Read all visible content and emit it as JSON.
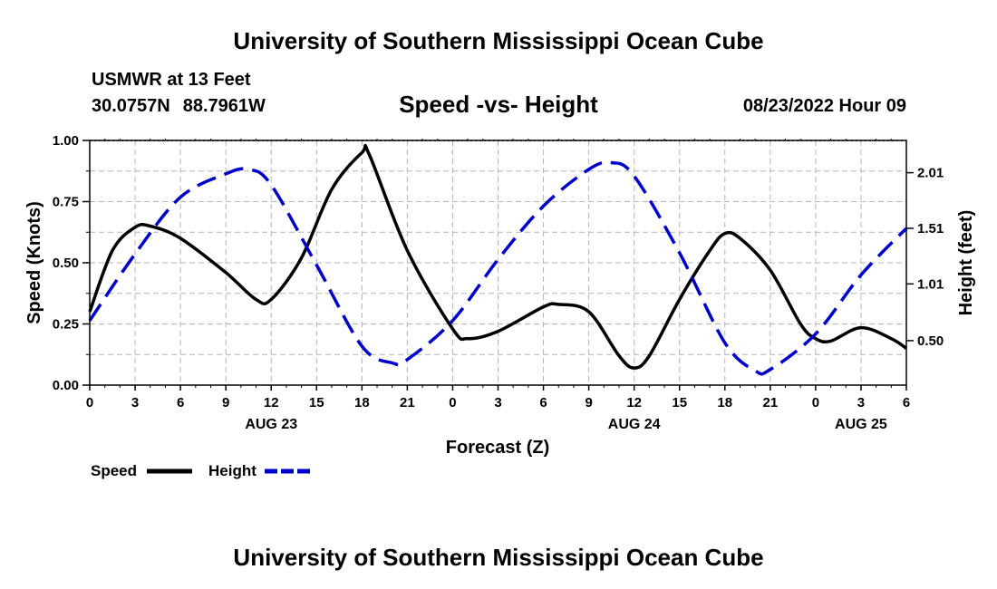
{
  "header": {
    "title": "University of Southern Mississippi Ocean Cube",
    "station": "USMWR at 13 Feet",
    "lat": "30.0757N",
    "lon": "88.7961W",
    "chart_title": "Speed -vs- Height",
    "datetime": "08/23/2022 Hour 09"
  },
  "footer": {
    "title": "University of Southern Mississippi Ocean Cube"
  },
  "chart_data": {
    "type": "line",
    "title": "Speed -vs- Height",
    "xlabel": "Forecast (Z)",
    "ylabel": "Speed (Knots)",
    "y2label": "Height (feet)",
    "grid": true,
    "x_range_hours": [
      0,
      54
    ],
    "x_ticks": [
      {
        "h": 0,
        "label": "0"
      },
      {
        "h": 3,
        "label": "3"
      },
      {
        "h": 6,
        "label": "6"
      },
      {
        "h": 9,
        "label": "9"
      },
      {
        "h": 12,
        "label": "12"
      },
      {
        "h": 15,
        "label": "15"
      },
      {
        "h": 18,
        "label": "18"
      },
      {
        "h": 21,
        "label": "21"
      },
      {
        "h": 24,
        "label": "0"
      },
      {
        "h": 27,
        "label": "3"
      },
      {
        "h": 30,
        "label": "6"
      },
      {
        "h": 33,
        "label": "9"
      },
      {
        "h": 36,
        "label": "12"
      },
      {
        "h": 39,
        "label": "15"
      },
      {
        "h": 42,
        "label": "18"
      },
      {
        "h": 45,
        "label": "21"
      },
      {
        "h": 48,
        "label": "0"
      },
      {
        "h": 51,
        "label": "3"
      },
      {
        "h": 54,
        "label": "6"
      }
    ],
    "date_labels": [
      {
        "h": 12,
        "label": "AUG 23"
      },
      {
        "h": 36,
        "label": "AUG 24"
      },
      {
        "h": 51,
        "label": "AUG 25"
      }
    ],
    "ylim": [
      0,
      1
    ],
    "y_ticks": [
      {
        "v": 0,
        "label": "0.00"
      },
      {
        "v": 0.25,
        "label": "0.25"
      },
      {
        "v": 0.5,
        "label": "0.50"
      },
      {
        "v": 0.75,
        "label": "0.75"
      },
      {
        "v": 1,
        "label": "1.00"
      }
    ],
    "y2lim": [
      0.1,
      2.3
    ],
    "y2_ticks": [
      {
        "v": 0.5,
        "label": "0.50"
      },
      {
        "v": 1.01,
        "label": "1.01"
      },
      {
        "v": 1.51,
        "label": "1.51"
      },
      {
        "v": 2.01,
        "label": "2.01"
      }
    ],
    "legend": [
      {
        "name": "Speed",
        "color": "#000000",
        "dash": false
      },
      {
        "name": "Height",
        "color": "#0000cc",
        "dash": true
      }
    ],
    "series": [
      {
        "name": "Speed",
        "axis": "left",
        "color": "#000000",
        "points": [
          [
            0,
            0.3
          ],
          [
            1.5,
            0.55
          ],
          [
            3,
            0.645
          ],
          [
            4,
            0.65
          ],
          [
            6,
            0.6
          ],
          [
            9,
            0.46
          ],
          [
            11,
            0.35
          ],
          [
            12,
            0.35
          ],
          [
            14,
            0.52
          ],
          [
            16,
            0.8
          ],
          [
            18,
            0.95
          ],
          [
            18.5,
            0.94
          ],
          [
            21,
            0.55
          ],
          [
            24,
            0.23
          ],
          [
            25,
            0.19
          ],
          [
            27,
            0.22
          ],
          [
            30,
            0.32
          ],
          [
            31,
            0.33
          ],
          [
            33,
            0.3
          ],
          [
            35,
            0.12
          ],
          [
            36,
            0.07
          ],
          [
            37,
            0.12
          ],
          [
            39,
            0.35
          ],
          [
            41,
            0.55
          ],
          [
            42,
            0.62
          ],
          [
            43,
            0.6
          ],
          [
            45,
            0.47
          ],
          [
            47,
            0.25
          ],
          [
            48,
            0.19
          ],
          [
            49,
            0.18
          ],
          [
            51,
            0.235
          ],
          [
            53,
            0.19
          ],
          [
            54,
            0.15
          ]
        ]
      },
      {
        "name": "Height",
        "axis": "right",
        "color": "#0000cc",
        "dashed": true,
        "points": [
          [
            0,
            0.68
          ],
          [
            3,
            1.28
          ],
          [
            6,
            1.79
          ],
          [
            9,
            2.0
          ],
          [
            10.5,
            2.04
          ],
          [
            12,
            1.9
          ],
          [
            15,
            1.18
          ],
          [
            18,
            0.45
          ],
          [
            20,
            0.3
          ],
          [
            21,
            0.33
          ],
          [
            24,
            0.68
          ],
          [
            27,
            1.23
          ],
          [
            30,
            1.71
          ],
          [
            33,
            2.04
          ],
          [
            34.5,
            2.1
          ],
          [
            36,
            1.98
          ],
          [
            39,
            1.29
          ],
          [
            42,
            0.48
          ],
          [
            44,
            0.23
          ],
          [
            45,
            0.24
          ],
          [
            48,
            0.56
          ],
          [
            51,
            1.09
          ],
          [
            54,
            1.51
          ]
        ]
      }
    ]
  }
}
